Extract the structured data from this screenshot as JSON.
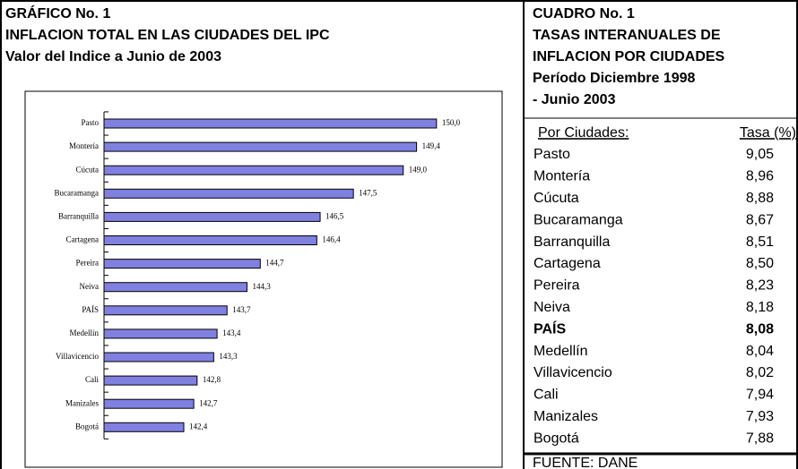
{
  "header": [
    "GRÁFICO No. 1",
    "INFLACION TOTAL EN LAS CIUDADES DEL IPC",
    "Valor del Indice a Junio de 2003"
  ],
  "chart_data": {
    "type": "bar",
    "orientation": "horizontal",
    "categories": [
      "Pasto",
      "Montería",
      "Cúcuta",
      "Bucaramanga",
      "Barranquilla",
      "Cartagena",
      "Pereira",
      "Neiva",
      "PAÍS",
      "Medellín",
      "Villavicencio",
      "Cali",
      "Manizales",
      "Bogotá"
    ],
    "values": [
      150.0,
      149.4,
      149.0,
      147.5,
      146.5,
      146.4,
      144.7,
      144.3,
      143.7,
      143.4,
      143.3,
      142.8,
      142.7,
      142.4
    ],
    "value_labels": [
      "150,0",
      "149,4",
      "149,0",
      "147,5",
      "146,5",
      "146,4",
      "144,7",
      "144,3",
      "143,7",
      "143,4",
      "143,3",
      "142,8",
      "142,7",
      "142,4"
    ],
    "color": "#8080e0",
    "xlim": [
      140,
      152
    ]
  },
  "table": {
    "title": [
      "CUADRO No. 1",
      "TASAS INTERANUALES DE",
      "INFLACION POR CIUDADES",
      "Período Diciembre 1998",
      "- Junio 2003"
    ],
    "columns": [
      "Por Ciudades:",
      "Tasa (%)"
    ],
    "rows": [
      [
        "Pasto",
        "9,05"
      ],
      [
        "Montería",
        "8,96"
      ],
      [
        "Cúcuta",
        "8,88"
      ],
      [
        "Bucaramanga",
        "8,67"
      ],
      [
        "Barranquilla",
        "8,51"
      ],
      [
        "Cartagena",
        "8,50"
      ],
      [
        "Pereira",
        "8,23"
      ],
      [
        "Neiva",
        "8,18"
      ],
      [
        "PAÍS",
        "8,08"
      ],
      [
        "Medellín",
        "8,04"
      ],
      [
        "Villavicencio",
        "8,02"
      ],
      [
        "Cali",
        "7,94"
      ],
      [
        "Manizales",
        "7,93"
      ],
      [
        "Bogotá",
        "7,88"
      ]
    ],
    "source": "FUENTE: DANE"
  }
}
